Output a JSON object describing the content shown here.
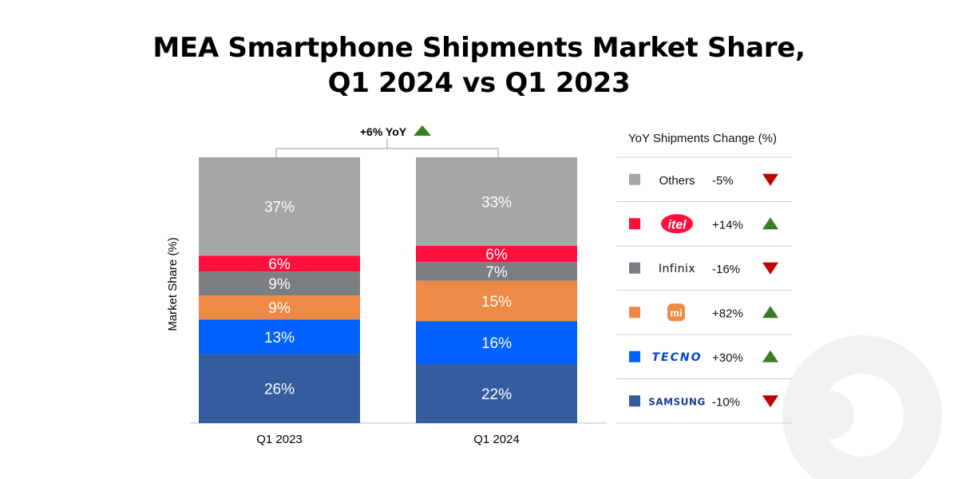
{
  "title_line1": "MEA Smartphone Shipments Market Share,",
  "title_line2": "Q1 2024 vs Q1 2023",
  "yoy_total_label": "+6% YoY",
  "legend_header": "YoY Shipments Change (%)",
  "colors": {
    "Others": "#a6a6a6",
    "itel": "#ff0f3c",
    "Infinix": "#7b7f82",
    "Xiaomi": "#ee8a45",
    "TECNO": "#0061ff",
    "Samsung": "#345c9e",
    "up": "#3a7d21",
    "down": "#c00000"
  },
  "chart_data": {
    "type": "bar",
    "stacked": true,
    "categories": [
      "Q1 2023",
      "Q1 2024"
    ],
    "ylabel": "Market Share (%)",
    "ylim": [
      0,
      100
    ],
    "grid": false,
    "series": [
      {
        "name": "Samsung",
        "values": [
          26,
          22
        ],
        "labels": [
          "26%",
          "22%"
        ]
      },
      {
        "name": "TECNO",
        "values": [
          13,
          16
        ],
        "labels": [
          "13%",
          "16%"
        ]
      },
      {
        "name": "Xiaomi",
        "values": [
          9,
          15
        ],
        "labels": [
          "9%",
          "15%"
        ]
      },
      {
        "name": "Infinix",
        "values": [
          9,
          7
        ],
        "labels": [
          "9%",
          "7%"
        ]
      },
      {
        "name": "itel",
        "values": [
          6,
          6
        ],
        "labels": [
          "6%",
          "6%"
        ]
      },
      {
        "name": "Others",
        "values": [
          37,
          33
        ],
        "labels": [
          "37%",
          "33%"
        ]
      }
    ],
    "legend_position": "right",
    "legend": [
      {
        "brand": "Others",
        "display": "Others",
        "change": "-5%",
        "direction": "down"
      },
      {
        "brand": "itel",
        "display": "itel",
        "change": "+14%",
        "direction": "up"
      },
      {
        "brand": "Infinix",
        "display": "Infinix",
        "change": "-16%",
        "direction": "down"
      },
      {
        "brand": "Xiaomi",
        "display": "mi",
        "change": "+82%",
        "direction": "up"
      },
      {
        "brand": "TECNO",
        "display": "TECNO",
        "change": "+30%",
        "direction": "up"
      },
      {
        "brand": "Samsung",
        "display": "SAMSUNG",
        "change": "-10%",
        "direction": "down"
      }
    ]
  }
}
